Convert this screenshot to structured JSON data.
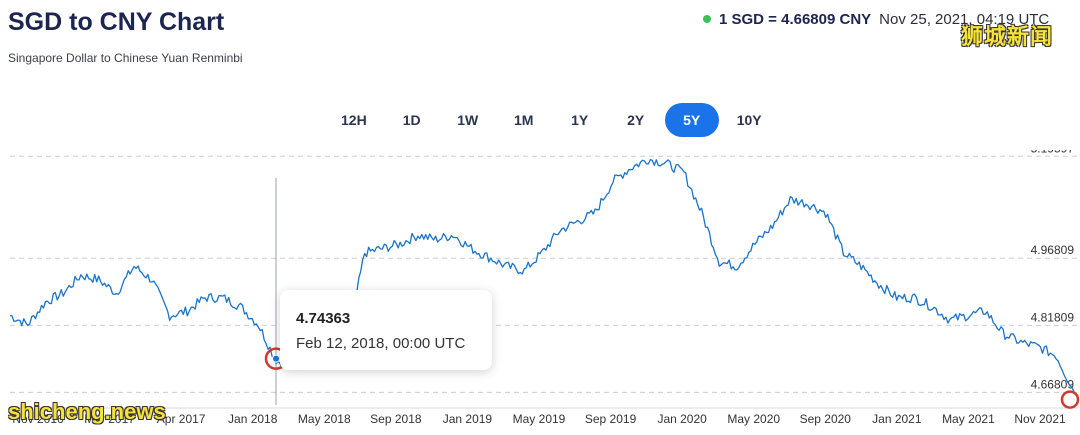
{
  "header": {
    "title": "SGD to CNY Chart",
    "subtitle": "Singapore Dollar to Chinese Yuan Renminbi",
    "rate": "1 SGD = 4.66809 CNY",
    "timestamp": "Nov 25, 2021, 04:19 UTC",
    "live_dot_color": "#3fbf5a"
  },
  "watermarks": {
    "top": "狮城新闻",
    "bottom": "shicheng.news"
  },
  "tabs": [
    {
      "label": "12H",
      "active": false
    },
    {
      "label": "1D",
      "active": false
    },
    {
      "label": "1W",
      "active": false
    },
    {
      "label": "1M",
      "active": false
    },
    {
      "label": "1Y",
      "active": false
    },
    {
      "label": "2Y",
      "active": false
    },
    {
      "label": "5Y",
      "active": true
    },
    {
      "label": "10Y",
      "active": false
    }
  ],
  "tooltip": {
    "value": "4.74363",
    "date": "Feb 12, 2018, 00:00 UTC"
  },
  "colors": {
    "line": "#1a73c8",
    "accent": "#1a73e8",
    "highlight_ring": "#d0392b"
  },
  "chart_data": {
    "type": "line",
    "title": "SGD to CNY Chart",
    "subtitle": "Singapore Dollar to Chinese Yuan Renminbi",
    "x_tick_labels": [
      "Nov 2016",
      "Mar 2017",
      "Apr 2017",
      "Jan 2018",
      "May 2018",
      "Sep 2018",
      "Jan 2019",
      "May 2019",
      "Sep 2019",
      "Jan 2020",
      "May 2020",
      "Sep 2020",
      "Jan 2021",
      "May 2021",
      "Nov 2021"
    ],
    "y_tick_labels": [
      "5.19597",
      "4.96809",
      "4.81809",
      "4.66809"
    ],
    "y_ticks": [
      5.19597,
      4.96809,
      4.81809,
      4.66809
    ],
    "ylim": [
      4.64,
      5.21
    ],
    "x": [
      "2016-11",
      "2016-12",
      "2017-01",
      "2017-02",
      "2017-03",
      "2017-04",
      "2017-05",
      "2017-06",
      "2017-07",
      "2017-08",
      "2017-09",
      "2017-10",
      "2017-11",
      "2017-12",
      "2018-01",
      "2018-02",
      "2018-03",
      "2018-04",
      "2018-05",
      "2018-06",
      "2018-07",
      "2018-08",
      "2018-09",
      "2018-10",
      "2018-11",
      "2018-12",
      "2019-01",
      "2019-02",
      "2019-03",
      "2019-04",
      "2019-05",
      "2019-06",
      "2019-07",
      "2019-08",
      "2019-09",
      "2019-10",
      "2019-11",
      "2019-12",
      "2020-01",
      "2020-02",
      "2020-03",
      "2020-04",
      "2020-05",
      "2020-06",
      "2020-07",
      "2020-08",
      "2020-09",
      "2020-10",
      "2020-11",
      "2020-12",
      "2021-01",
      "2021-02",
      "2021-03",
      "2021-04",
      "2021-05",
      "2021-06",
      "2021-07",
      "2021-08",
      "2021-09",
      "2021-10",
      "2021-11"
    ],
    "series": [
      {
        "values": [
          4.84,
          4.82,
          4.87,
          4.89,
          4.93,
          4.92,
          4.89,
          4.95,
          4.92,
          4.84,
          4.85,
          4.88,
          4.88,
          4.86,
          4.82,
          4.74,
          4.72,
          4.74,
          4.75,
          4.78,
          4.98,
          4.99,
          5.0,
          5.02,
          5.01,
          5.02,
          4.99,
          4.97,
          4.95,
          4.94,
          4.98,
          5.03,
          5.05,
          5.07,
          5.14,
          5.17,
          5.19,
          5.18,
          5.16,
          5.07,
          4.96,
          4.95,
          5.0,
          5.04,
          5.1,
          5.09,
          5.07,
          4.98,
          4.95,
          4.91,
          4.88,
          4.88,
          4.86,
          4.83,
          4.84,
          4.85,
          4.8,
          4.78,
          4.77,
          4.75,
          4.67
        ]
      }
    ],
    "highlight_point": {
      "x": "2018-02-12",
      "y": 4.74363
    },
    "grid": true
  }
}
